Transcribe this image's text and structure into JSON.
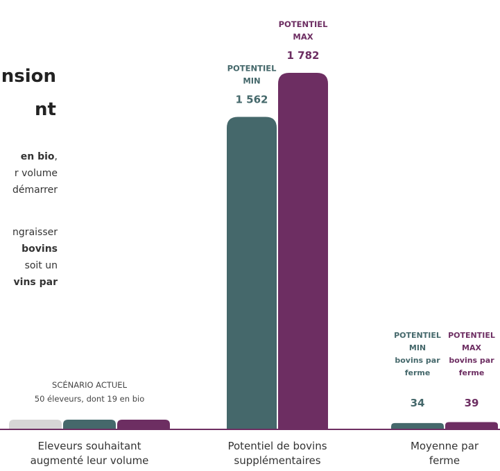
{
  "intro": {
    "title_lines": [
      "nsion",
      "nt"
    ],
    "para1": [
      {
        "text": "en bio",
        "bold": true,
        "suffix": ","
      },
      {
        "text": "r volume",
        "bold": false
      },
      {
        "text": "démarrer",
        "bold": false
      }
    ],
    "para2": [
      {
        "text": "ngraisser",
        "bold": false
      },
      {
        "text": "bovins",
        "bold": true
      },
      {
        "text": "soit un",
        "bold": false
      },
      {
        "text": "vins par",
        "bold": true
      }
    ]
  },
  "colors": {
    "min": "#45686b",
    "max": "#6d2e62",
    "current": "#d6d6d6",
    "baseline": "#6d2e62"
  },
  "chart_data": {
    "type": "bar",
    "groups": [
      {
        "category": [
          "Eleveurs souhaitant",
          "augmenté leur volume"
        ],
        "bars": [
          {
            "series": "current",
            "value": 50
          },
          {
            "series": "min",
            "value": 50
          },
          {
            "series": "max",
            "value": 50
          }
        ],
        "annotation": [
          "SCÉNARIO ACTUEL",
          "50 éleveurs, dont 19 en bio"
        ]
      },
      {
        "category": [
          "Potentiel de bovins",
          "supplémentaires"
        ],
        "bars": [
          {
            "series": "min",
            "value": 1562,
            "label": "1 562",
            "header": [
              "POTENTIEL",
              "MIN"
            ]
          },
          {
            "series": "max",
            "value": 1782,
            "label": "1 782",
            "header": [
              "POTENTIEL",
              "MAX"
            ]
          }
        ]
      },
      {
        "category": [
          "Moyenne par",
          "ferme"
        ],
        "bars": [
          {
            "series": "min",
            "value": 34,
            "label": "34",
            "header": [
              "POTENTIEL",
              "MIN",
              "bovins par",
              "ferme"
            ]
          },
          {
            "series": "max",
            "value": 39,
            "label": "39",
            "header": [
              "POTENTIEL",
              "MAX",
              "bovins par",
              "ferme"
            ]
          }
        ]
      }
    ]
  }
}
